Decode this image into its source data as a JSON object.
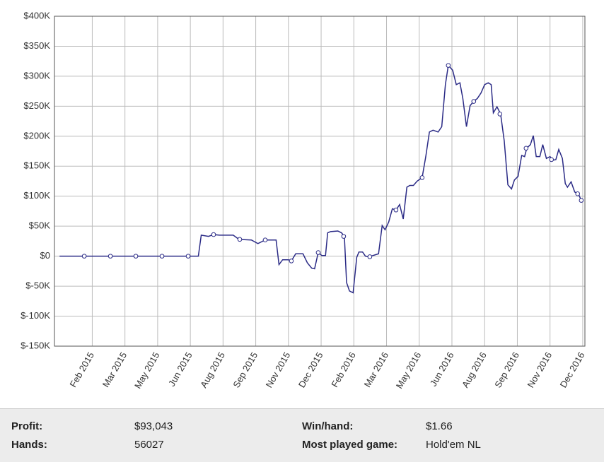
{
  "chart_data": {
    "type": "line",
    "xlim": [
      0,
      730
    ],
    "xticks": [
      {
        "value": 52,
        "label": "Feb 2015"
      },
      {
        "value": 97,
        "label": "Mar 2015"
      },
      {
        "value": 142,
        "label": "May 2015"
      },
      {
        "value": 187,
        "label": "Jun 2015"
      },
      {
        "value": 232,
        "label": "Aug 2015"
      },
      {
        "value": 277,
        "label": "Sep 2015"
      },
      {
        "value": 322,
        "label": "Nov 2015"
      },
      {
        "value": 367,
        "label": "Dec 2015"
      },
      {
        "value": 412,
        "label": "Feb 2016"
      },
      {
        "value": 457,
        "label": "Mar 2016"
      },
      {
        "value": 502,
        "label": "May 2016"
      },
      {
        "value": 547,
        "label": "Jun 2016"
      },
      {
        "value": 592,
        "label": "Aug 2016"
      },
      {
        "value": 637,
        "label": "Sep 2016"
      },
      {
        "value": 682,
        "label": "Nov 2016"
      },
      {
        "value": 727,
        "label": "Dec 2016"
      }
    ],
    "ylim": [
      -150,
      400
    ],
    "yticks": [
      {
        "value": -150,
        "label": "$-150K"
      },
      {
        "value": -100,
        "label": "$-100K"
      },
      {
        "value": -50,
        "label": "$-50K"
      },
      {
        "value": 0,
        "label": "$0"
      },
      {
        "value": 50,
        "label": "$50K"
      },
      {
        "value": 100,
        "label": "$100K"
      },
      {
        "value": 150,
        "label": "$150K"
      },
      {
        "value": 200,
        "label": "$200K"
      },
      {
        "value": 250,
        "label": "$250K"
      },
      {
        "value": 300,
        "label": "$300K"
      },
      {
        "value": 350,
        "label": "$350K"
      },
      {
        "value": 400,
        "label": "$400K"
      }
    ],
    "grid": true,
    "series": [
      {
        "color": "#2b2b86",
        "line": true,
        "marker": false,
        "x": [
          7,
          198,
          202,
          212,
          219,
          227,
          246,
          254,
          271,
          280,
          290,
          305,
          309,
          314,
          322,
          326,
          332,
          342,
          348,
          354,
          358,
          363,
          368,
          373,
          376,
          380,
          390,
          395,
          399,
          402,
          406,
          411,
          416,
          419,
          424,
          428,
          433,
          438,
          446,
          451,
          455,
          460,
          465,
          470,
          475,
          480,
          485,
          489,
          494,
          499,
          506,
          511,
          516,
          521,
          528,
          533,
          538,
          542,
          548,
          553,
          558,
          562,
          567,
          572,
          577,
          582,
          587,
          592,
          597,
          601,
          604,
          609,
          614,
          619,
          624,
          629,
          633,
          638,
          643,
          647,
          650,
          655,
          659,
          663,
          668,
          672,
          677,
          682,
          686,
          690,
          694,
          699,
          703,
          706,
          711,
          716,
          721,
          725
        ],
        "values": [
          0,
          0,
          35,
          33,
          36,
          35,
          35,
          28,
          27,
          21,
          27,
          27,
          -14,
          -6,
          -6,
          -8,
          4,
          4,
          -11,
          -20,
          -21,
          6,
          1,
          1,
          39,
          41,
          42,
          39,
          33,
          -44,
          -58,
          -61,
          -2,
          7,
          7,
          0,
          -1,
          1,
          4,
          51,
          44,
          57,
          79,
          77,
          86,
          62,
          115,
          118,
          118,
          125,
          131,
          166,
          207,
          210,
          207,
          216,
          286,
          318,
          310,
          286,
          289,
          263,
          216,
          251,
          258,
          263,
          272,
          286,
          289,
          286,
          239,
          249,
          237,
          192,
          119,
          112,
          127,
          133,
          168,
          166,
          180,
          186,
          201,
          166,
          166,
          186,
          163,
          166,
          160,
          161,
          178,
          163,
          121,
          115,
          124,
          107,
          104,
          93
        ]
      },
      {
        "color": "#2b2b86",
        "line": false,
        "marker": true,
        "x": [
          41,
          77,
          112,
          148,
          184,
          219,
          255,
          290,
          326,
          363,
          398,
          434,
          470,
          506,
          542,
          577,
          613,
          649,
          684,
          720,
          725
        ],
        "values": [
          0,
          0,
          0,
          0,
          0,
          36,
          28,
          27,
          -8,
          6,
          33,
          -1,
          77,
          131,
          318,
          258,
          237,
          180,
          161,
          104,
          93
        ]
      }
    ]
  },
  "stats": {
    "rows": [
      [
        "Profit:",
        "$93,043",
        "Win/hand:",
        "$1.66"
      ],
      [
        "Hands:",
        "56027",
        "Most played game:",
        "Hold'em NL"
      ]
    ]
  }
}
